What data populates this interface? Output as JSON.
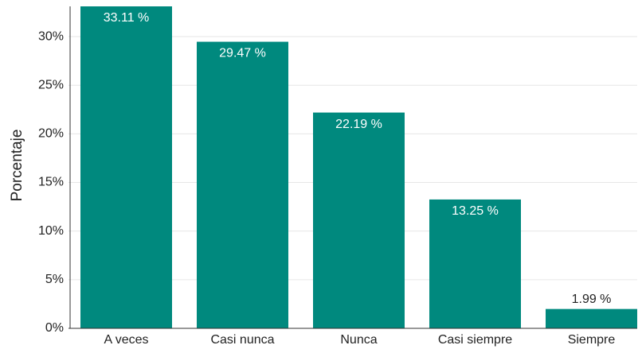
{
  "chart_data": {
    "type": "bar",
    "y_label": "Porcentaje",
    "categories": [
      "A veces",
      "Casi nunca",
      "Nunca",
      "Casi siempre",
      "Siempre"
    ],
    "values": [
      33.11,
      29.47,
      22.19,
      13.25,
      1.99
    ],
    "value_labels": [
      "33.11 %",
      "29.47 %",
      "22.19 %",
      "13.25 %",
      "1.99 %"
    ],
    "color": "#00897e",
    "ylim": [
      0,
      33.11
    ],
    "yticks": [
      {
        "value": 0,
        "label": "0%"
      },
      {
        "value": 5,
        "label": "5%"
      },
      {
        "value": 10,
        "label": "10%"
      },
      {
        "value": 15,
        "label": "15%"
      },
      {
        "value": 20,
        "label": "20%"
      },
      {
        "value": 25,
        "label": "25%"
      },
      {
        "value": 30,
        "label": "30%"
      }
    ],
    "grid": true
  }
}
